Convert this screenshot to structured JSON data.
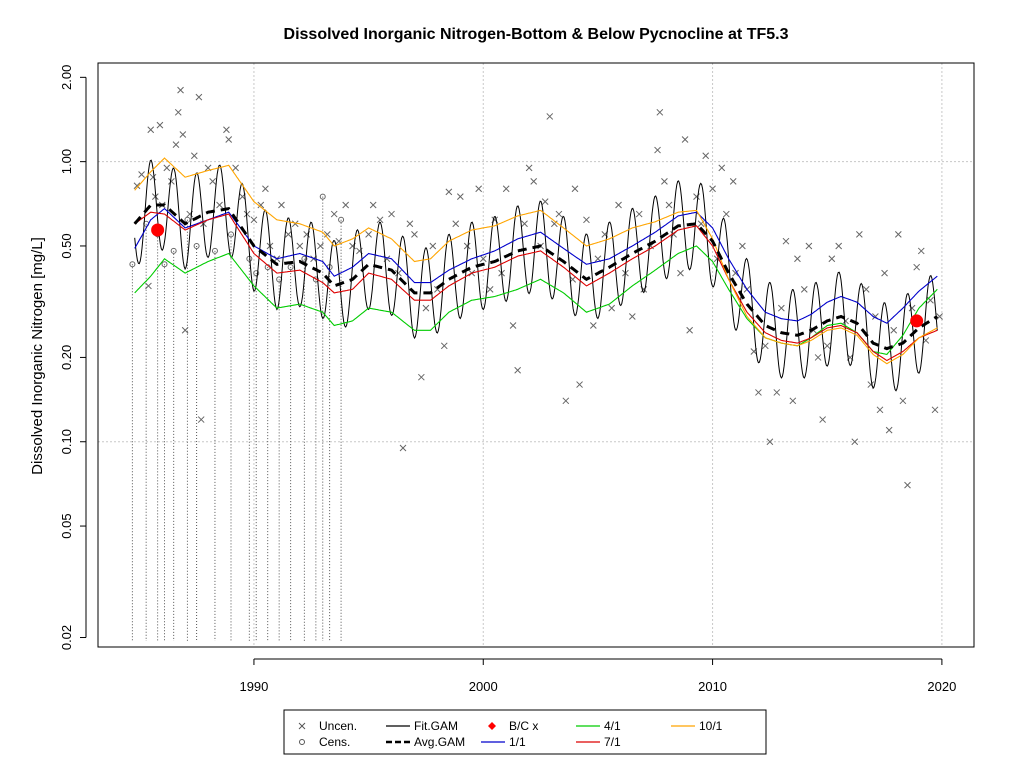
{
  "chart_data": {
    "type": "line",
    "title": "Dissolved Inorganic Nitrogen-Bottom & Below Pycnocline at TF5.3",
    "xlabel": "",
    "ylabel": "Dissolved Inorganic Nitrogen [mg/L]",
    "y_scale": "log",
    "xlim": [
      1983.2,
      2021.4
    ],
    "ylim": [
      0.0185,
      2.25
    ],
    "x_ticks": [
      1990,
      2000,
      2010,
      2020
    ],
    "x_tick_labels": [
      "1990",
      "2000",
      "2010",
      "2020"
    ],
    "y_ticks": [
      0.02,
      0.05,
      0.1,
      0.2,
      0.5,
      1.0,
      2.0
    ],
    "y_tick_labels": [
      "0.02",
      "0.05",
      "0.10",
      "0.20",
      "0.50",
      "1.00",
      "2.00"
    ],
    "grid": true,
    "legend_placement": "bottom",
    "legend": [
      {
        "label": "Uncen.",
        "kind": "cross",
        "color": "#555555"
      },
      {
        "label": "Cens.",
        "kind": "circle",
        "color": "#555555"
      },
      {
        "label": "Fit.GAM",
        "kind": "line",
        "color": "#000000"
      },
      {
        "label": "Avg.GAM",
        "kind": "dash",
        "color": "#000000"
      },
      {
        "label": "B/C x",
        "kind": "diamond",
        "color": "#ff0000"
      },
      {
        "label": "1/1",
        "kind": "line",
        "color": "#0000cc"
      },
      {
        "label": "4/1",
        "kind": "line",
        "color": "#00cc00"
      },
      {
        "label": "7/1",
        "kind": "line",
        "color": "#dd0000"
      },
      {
        "label": "10/1",
        "kind": "line",
        "color": "#ffa500"
      }
    ],
    "avg_gam": {
      "x": [
        1984.8,
        1985.5,
        1986.1,
        1987.0,
        1988.0,
        1988.9,
        1990.0,
        1991.0,
        1992.0,
        1993.0,
        1993.5,
        1994.3,
        1995.0,
        1996.0,
        1997.0,
        1997.7,
        1998.5,
        1999.5,
        2000.5,
        2001.5,
        2002.5,
        2003.5,
        2004.5,
        2005.5,
        2006.5,
        2007.5,
        2008.5,
        2009.3,
        2010.0,
        2010.7,
        2011.5,
        2012.3,
        2013.0,
        2013.7,
        2014.3,
        2015.0,
        2015.6,
        2016.3,
        2017.0,
        2017.6,
        2018.3,
        2019.0,
        2019.8
      ],
      "y": [
        0.6,
        0.7,
        0.7,
        0.6,
        0.66,
        0.68,
        0.5,
        0.43,
        0.44,
        0.4,
        0.36,
        0.38,
        0.43,
        0.41,
        0.34,
        0.34,
        0.38,
        0.42,
        0.44,
        0.48,
        0.5,
        0.44,
        0.38,
        0.42,
        0.47,
        0.52,
        0.59,
        0.6,
        0.52,
        0.4,
        0.31,
        0.26,
        0.245,
        0.24,
        0.25,
        0.27,
        0.28,
        0.265,
        0.225,
        0.215,
        0.225,
        0.255,
        0.28
      ]
    },
    "series": [
      {
        "name": "Fit.GAM",
        "color": "#000000",
        "amplitude_factor": 1.45,
        "values_follow": "avg_gam"
      },
      {
        "name": "1/1",
        "color": "#0000cc",
        "x": [
          1984.8,
          1985.5,
          1986.1,
          1987.0,
          1988.0,
          1988.9,
          1990.0,
          1991.0,
          1992.0,
          1993.0,
          1993.5,
          1994.3,
          1995.0,
          1996.0,
          1997.0,
          1997.7,
          1998.5,
          1999.5,
          2000.5,
          2001.5,
          2002.5,
          2003.5,
          2004.5,
          2005.5,
          2006.5,
          2007.5,
          2008.5,
          2009.3,
          2010.0,
          2010.7,
          2011.5,
          2012.3,
          2013.0,
          2013.7,
          2014.3,
          2015.0,
          2015.6,
          2016.3,
          2017.0,
          2017.6,
          2018.3,
          2019.0,
          2019.8
        ],
        "values": [
          0.49,
          0.62,
          0.68,
          0.58,
          0.62,
          0.66,
          0.5,
          0.45,
          0.47,
          0.44,
          0.39,
          0.42,
          0.47,
          0.45,
          0.37,
          0.37,
          0.41,
          0.45,
          0.48,
          0.53,
          0.56,
          0.49,
          0.43,
          0.45,
          0.5,
          0.56,
          0.64,
          0.66,
          0.58,
          0.45,
          0.35,
          0.29,
          0.275,
          0.27,
          0.285,
          0.315,
          0.33,
          0.315,
          0.28,
          0.265,
          0.3,
          0.345,
          0.39
        ]
      },
      {
        "name": "4/1",
        "color": "#00cc00",
        "x": [
          1984.8,
          1985.5,
          1986.1,
          1987.0,
          1988.0,
          1988.9,
          1990.0,
          1991.0,
          1992.0,
          1993.0,
          1993.5,
          1994.3,
          1995.0,
          1996.0,
          1997.0,
          1997.7,
          1998.5,
          1999.5,
          2000.5,
          2001.5,
          2002.5,
          2003.5,
          2004.5,
          2005.5,
          2006.5,
          2007.5,
          2008.5,
          2009.3,
          2010.0,
          2010.7,
          2011.5,
          2012.3,
          2013.0,
          2013.7,
          2014.3,
          2015.0,
          2015.6,
          2016.3,
          2017.0,
          2017.6,
          2018.3,
          2019.0,
          2019.8
        ],
        "values": [
          0.34,
          0.39,
          0.45,
          0.4,
          0.44,
          0.47,
          0.36,
          0.3,
          0.31,
          0.29,
          0.26,
          0.27,
          0.3,
          0.29,
          0.25,
          0.25,
          0.29,
          0.32,
          0.33,
          0.35,
          0.38,
          0.34,
          0.29,
          0.31,
          0.36,
          0.41,
          0.47,
          0.5,
          0.44,
          0.35,
          0.275,
          0.235,
          0.225,
          0.22,
          0.235,
          0.26,
          0.265,
          0.245,
          0.21,
          0.205,
          0.24,
          0.3,
          0.35
        ]
      },
      {
        "name": "7/1",
        "color": "#dd0000",
        "x": [
          1984.8,
          1985.5,
          1986.1,
          1987.0,
          1988.0,
          1988.9,
          1990.0,
          1991.0,
          1992.0,
          1993.0,
          1993.5,
          1994.3,
          1995.0,
          1996.0,
          1997.0,
          1997.7,
          1998.5,
          1999.5,
          2000.5,
          2001.5,
          2002.5,
          2003.5,
          2004.5,
          2005.5,
          2006.5,
          2007.5,
          2008.5,
          2009.3,
          2010.0,
          2010.7,
          2011.5,
          2012.3,
          2013.0,
          2013.7,
          2014.3,
          2015.0,
          2015.6,
          2016.3,
          2017.0,
          2017.6,
          2018.3,
          2019.0,
          2019.8
        ],
        "values": [
          0.6,
          0.66,
          0.65,
          0.57,
          0.62,
          0.65,
          0.47,
          0.4,
          0.41,
          0.37,
          0.34,
          0.35,
          0.4,
          0.38,
          0.32,
          0.32,
          0.36,
          0.4,
          0.42,
          0.46,
          0.48,
          0.42,
          0.36,
          0.4,
          0.45,
          0.5,
          0.57,
          0.59,
          0.5,
          0.38,
          0.29,
          0.245,
          0.23,
          0.225,
          0.235,
          0.255,
          0.26,
          0.245,
          0.21,
          0.195,
          0.21,
          0.235,
          0.25
        ]
      },
      {
        "name": "10/1",
        "color": "#ffa500",
        "x": [
          1984.8,
          1985.5,
          1986.1,
          1987.0,
          1988.0,
          1988.9,
          1990.0,
          1991.0,
          1992.0,
          1993.0,
          1993.5,
          1994.3,
          1995.0,
          1996.0,
          1997.0,
          1997.7,
          1998.5,
          1999.5,
          2000.5,
          2001.5,
          2002.5,
          2003.5,
          2004.5,
          2005.5,
          2006.5,
          2007.5,
          2008.5,
          2009.3,
          2010.0,
          2010.7,
          2011.5,
          2012.3,
          2013.0,
          2013.7,
          2014.3,
          2015.0,
          2015.6,
          2016.3,
          2017.0,
          2017.6,
          2018.3,
          2019.0,
          2019.8
        ],
        "values": [
          0.79,
          0.92,
          1.03,
          0.88,
          0.93,
          0.97,
          0.72,
          0.62,
          0.6,
          0.56,
          0.5,
          0.53,
          0.58,
          0.53,
          0.44,
          0.45,
          0.52,
          0.57,
          0.59,
          0.64,
          0.67,
          0.58,
          0.5,
          0.53,
          0.58,
          0.61,
          0.66,
          0.67,
          0.53,
          0.38,
          0.28,
          0.235,
          0.225,
          0.22,
          0.23,
          0.25,
          0.255,
          0.24,
          0.205,
          0.19,
          0.205,
          0.235,
          0.255
        ]
      }
    ],
    "bc_points": [
      {
        "x": 1985.8,
        "y": 0.57
      },
      {
        "x": 2018.9,
        "y": 0.27
      }
    ],
    "uncensored": [
      [
        1984.9,
        0.82
      ],
      [
        1985.1,
        0.9
      ],
      [
        1985.4,
        0.36
      ],
      [
        1985.5,
        1.3
      ],
      [
        1985.6,
        0.88
      ],
      [
        1985.7,
        0.75
      ],
      [
        1985.9,
        1.35
      ],
      [
        1986.0,
        0.7
      ],
      [
        1986.2,
        0.95
      ],
      [
        1986.4,
        0.85
      ],
      [
        1986.6,
        1.15
      ],
      [
        1986.7,
        1.5
      ],
      [
        1986.8,
        1.8
      ],
      [
        1986.9,
        1.25
      ],
      [
        1987.0,
        0.25
      ],
      [
        1987.2,
        0.65
      ],
      [
        1987.4,
        1.05
      ],
      [
        1987.6,
        1.7
      ],
      [
        1987.7,
        0.12
      ],
      [
        1987.8,
        0.6
      ],
      [
        1988.0,
        0.95
      ],
      [
        1988.2,
        0.85
      ],
      [
        1988.5,
        0.7
      ],
      [
        1988.8,
        1.3
      ],
      [
        1988.9,
        1.2
      ],
      [
        1989.2,
        0.95
      ],
      [
        1989.5,
        0.75
      ],
      [
        1989.7,
        0.65
      ],
      [
        1990.0,
        0.62
      ],
      [
        1990.3,
        0.7
      ],
      [
        1990.5,
        0.8
      ],
      [
        1990.7,
        0.5
      ],
      [
        1991.0,
        0.45
      ],
      [
        1991.2,
        0.7
      ],
      [
        1991.5,
        0.55
      ],
      [
        1991.8,
        0.6
      ],
      [
        1992.0,
        0.5
      ],
      [
        1992.3,
        0.55
      ],
      [
        1992.6,
        0.45
      ],
      [
        1992.9,
        0.5
      ],
      [
        1993.2,
        0.55
      ],
      [
        1993.5,
        0.65
      ],
      [
        1993.7,
        0.52
      ],
      [
        1994.0,
        0.7
      ],
      [
        1994.3,
        0.5
      ],
      [
        1994.6,
        0.48
      ],
      [
        1995.0,
        0.55
      ],
      [
        1995.2,
        0.7
      ],
      [
        1995.5,
        0.62
      ],
      [
        1995.8,
        0.45
      ],
      [
        1996.0,
        0.65
      ],
      [
        1996.3,
        0.4
      ],
      [
        1996.5,
        0.095
      ],
      [
        1996.8,
        0.6
      ],
      [
        1997.0,
        0.55
      ],
      [
        1997.3,
        0.17
      ],
      [
        1997.5,
        0.3
      ],
      [
        1997.8,
        0.5
      ],
      [
        1998.0,
        0.35
      ],
      [
        1998.3,
        0.22
      ],
      [
        1998.5,
        0.78
      ],
      [
        1998.8,
        0.6
      ],
      [
        1999.0,
        0.75
      ],
      [
        1999.3,
        0.5
      ],
      [
        1999.5,
        0.4
      ],
      [
        1999.8,
        0.8
      ],
      [
        2000.0,
        0.45
      ],
      [
        2000.3,
        0.35
      ],
      [
        2000.5,
        0.62
      ],
      [
        2000.8,
        0.4
      ],
      [
        2001.0,
        0.8
      ],
      [
        2001.3,
        0.26
      ],
      [
        2001.5,
        0.18
      ],
      [
        2001.8,
        0.6
      ],
      [
        2002.0,
        0.95
      ],
      [
        2002.2,
        0.85
      ],
      [
        2002.5,
        0.5
      ],
      [
        2002.7,
        0.72
      ],
      [
        2002.9,
        1.45
      ],
      [
        2003.1,
        0.6
      ],
      [
        2003.3,
        0.65
      ],
      [
        2003.6,
        0.14
      ],
      [
        2003.9,
        0.38
      ],
      [
        2004.0,
        0.8
      ],
      [
        2004.2,
        0.16
      ],
      [
        2004.5,
        0.62
      ],
      [
        2004.8,
        0.26
      ],
      [
        2005.0,
        0.45
      ],
      [
        2005.3,
        0.55
      ],
      [
        2005.6,
        0.3
      ],
      [
        2005.9,
        0.7
      ],
      [
        2006.2,
        0.4
      ],
      [
        2006.5,
        0.28
      ],
      [
        2006.8,
        0.65
      ],
      [
        2007.0,
        0.35
      ],
      [
        2007.3,
        0.5
      ],
      [
        2007.6,
        1.1
      ],
      [
        2007.7,
        1.5
      ],
      [
        2007.9,
        0.85
      ],
      [
        2008.1,
        0.7
      ],
      [
        2008.3,
        0.55
      ],
      [
        2008.6,
        0.4
      ],
      [
        2008.8,
        1.2
      ],
      [
        2009.0,
        0.25
      ],
      [
        2009.3,
        0.75
      ],
      [
        2009.5,
        0.6
      ],
      [
        2009.7,
        1.05
      ],
      [
        2010.0,
        0.8
      ],
      [
        2010.2,
        0.45
      ],
      [
        2010.4,
        0.95
      ],
      [
        2010.6,
        0.65
      ],
      [
        2010.9,
        0.85
      ],
      [
        2011.0,
        0.4
      ],
      [
        2011.3,
        0.5
      ],
      [
        2011.5,
        0.35
      ],
      [
        2011.8,
        0.21
      ],
      [
        2012.0,
        0.15
      ],
      [
        2012.3,
        0.22
      ],
      [
        2012.5,
        0.1
      ],
      [
        2012.8,
        0.15
      ],
      [
        2013.0,
        0.3
      ],
      [
        2013.2,
        0.52
      ],
      [
        2013.5,
        0.14
      ],
      [
        2013.7,
        0.45
      ],
      [
        2014.0,
        0.35
      ],
      [
        2014.2,
        0.5
      ],
      [
        2014.4,
        0.25
      ],
      [
        2014.6,
        0.2
      ],
      [
        2014.8,
        0.12
      ],
      [
        2015.0,
        0.22
      ],
      [
        2015.2,
        0.45
      ],
      [
        2015.5,
        0.5
      ],
      [
        2015.8,
        0.27
      ],
      [
        2016.0,
        0.2
      ],
      [
        2016.2,
        0.1
      ],
      [
        2016.4,
        0.55
      ],
      [
        2016.7,
        0.35
      ],
      [
        2016.9,
        0.16
      ],
      [
        2017.1,
        0.28
      ],
      [
        2017.3,
        0.13
      ],
      [
        2017.5,
        0.4
      ],
      [
        2017.7,
        0.11
      ],
      [
        2017.9,
        0.25
      ],
      [
        2018.1,
        0.55
      ],
      [
        2018.3,
        0.14
      ],
      [
        2018.5,
        0.07
      ],
      [
        2018.7,
        0.3
      ],
      [
        2018.9,
        0.42
      ],
      [
        2019.1,
        0.48
      ],
      [
        2019.3,
        0.23
      ],
      [
        2019.5,
        0.32
      ],
      [
        2019.7,
        0.13
      ],
      [
        2019.9,
        0.28
      ]
    ],
    "censored": [
      [
        1984.7,
        0.43
      ],
      [
        1985.3,
        0.6
      ],
      [
        1985.8,
        0.55
      ],
      [
        1986.1,
        0.43
      ],
      [
        1986.5,
        0.48
      ],
      [
        1987.1,
        0.62
      ],
      [
        1987.5,
        0.5
      ],
      [
        1988.3,
        0.48
      ],
      [
        1989.0,
        0.55
      ],
      [
        1989.8,
        0.45
      ],
      [
        1990.1,
        0.4
      ],
      [
        1990.6,
        0.42
      ],
      [
        1991.1,
        0.38
      ],
      [
        1991.6,
        0.42
      ],
      [
        1992.2,
        0.45
      ],
      [
        1992.7,
        0.38
      ],
      [
        1993.0,
        0.75
      ],
      [
        1993.3,
        0.42
      ],
      [
        1993.8,
        0.62
      ]
    ]
  }
}
